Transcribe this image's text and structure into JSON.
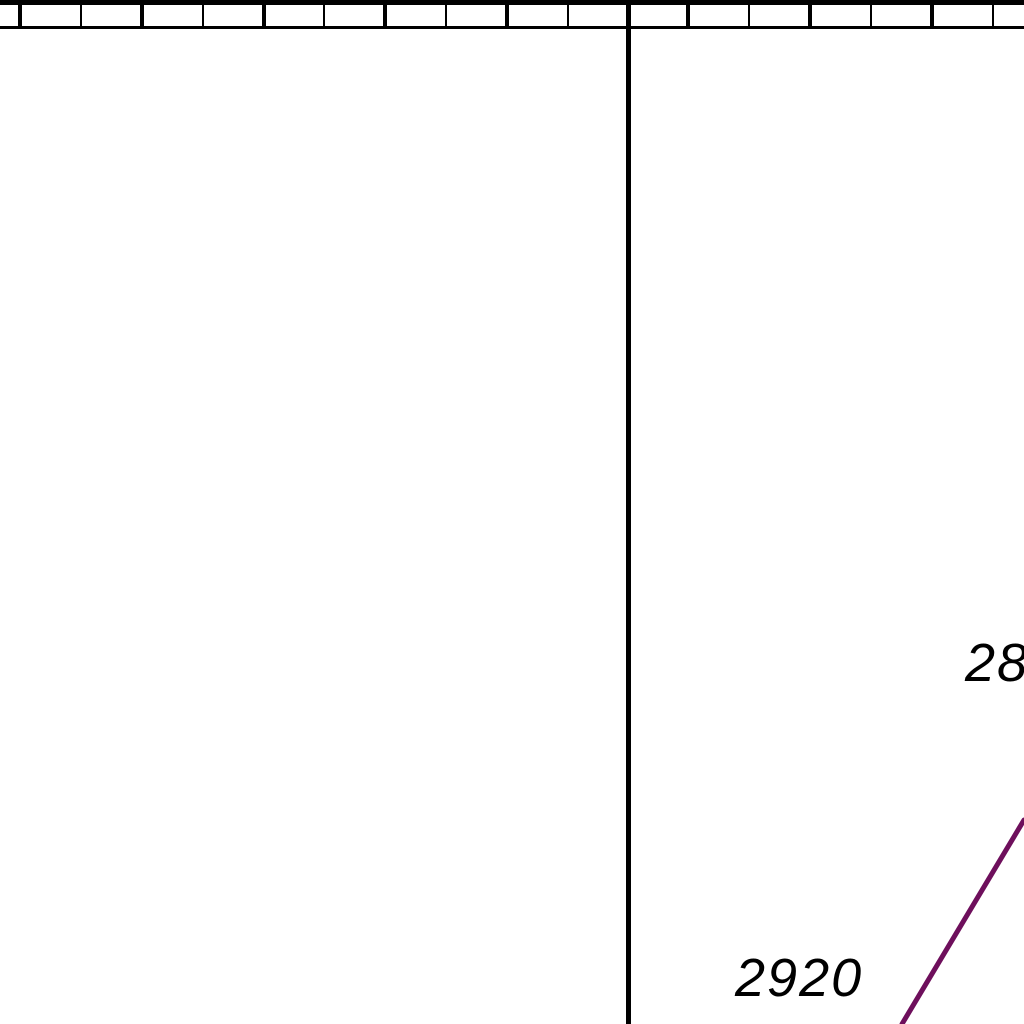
{
  "colors": {
    "background": "#ffffff",
    "ink": "#000000",
    "contour": "#6e0f5c"
  },
  "map": {
    "contour_labels": [
      "2920",
      "28"
    ]
  }
}
